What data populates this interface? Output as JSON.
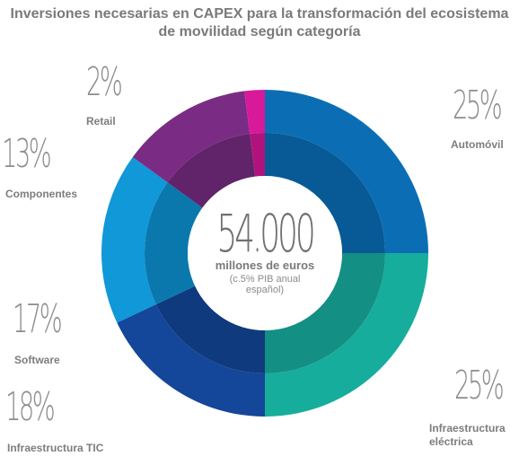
{
  "chart_data": {
    "type": "pie",
    "title": "Inversiones necesarias en CAPEX para la transformación del ecosistema de movilidad según categoría",
    "center": {
      "total": "54.000",
      "unit": "millones de euros",
      "note": "(c.5% PIB anual español)"
    },
    "slices": [
      {
        "label": "Automóvil",
        "pct_label": "25%",
        "value": 25,
        "color": "#0b6eb5",
        "inner_color": "#085a96"
      },
      {
        "label": "Infraestructura eléctrica",
        "pct_label": "25%",
        "value": 25,
        "color": "#17ad9c",
        "inner_color": "#148f83"
      },
      {
        "label": "Infraestructura TIC",
        "pct_label": "18%",
        "value": 18,
        "color": "#14469a",
        "inner_color": "#0f3a7e"
      },
      {
        "label": "Software",
        "pct_label": "17%",
        "value": 17,
        "color": "#1098d9",
        "inner_color": "#0a78ad"
      },
      {
        "label": "Componentes",
        "pct_label": "13%",
        "value": 13,
        "color": "#7a2c84",
        "inner_color": "#61246a"
      },
      {
        "label": "Retail",
        "pct_label": "2%",
        "value": 2,
        "color": "#d7199a",
        "inner_color": "#b0137e"
      }
    ]
  }
}
